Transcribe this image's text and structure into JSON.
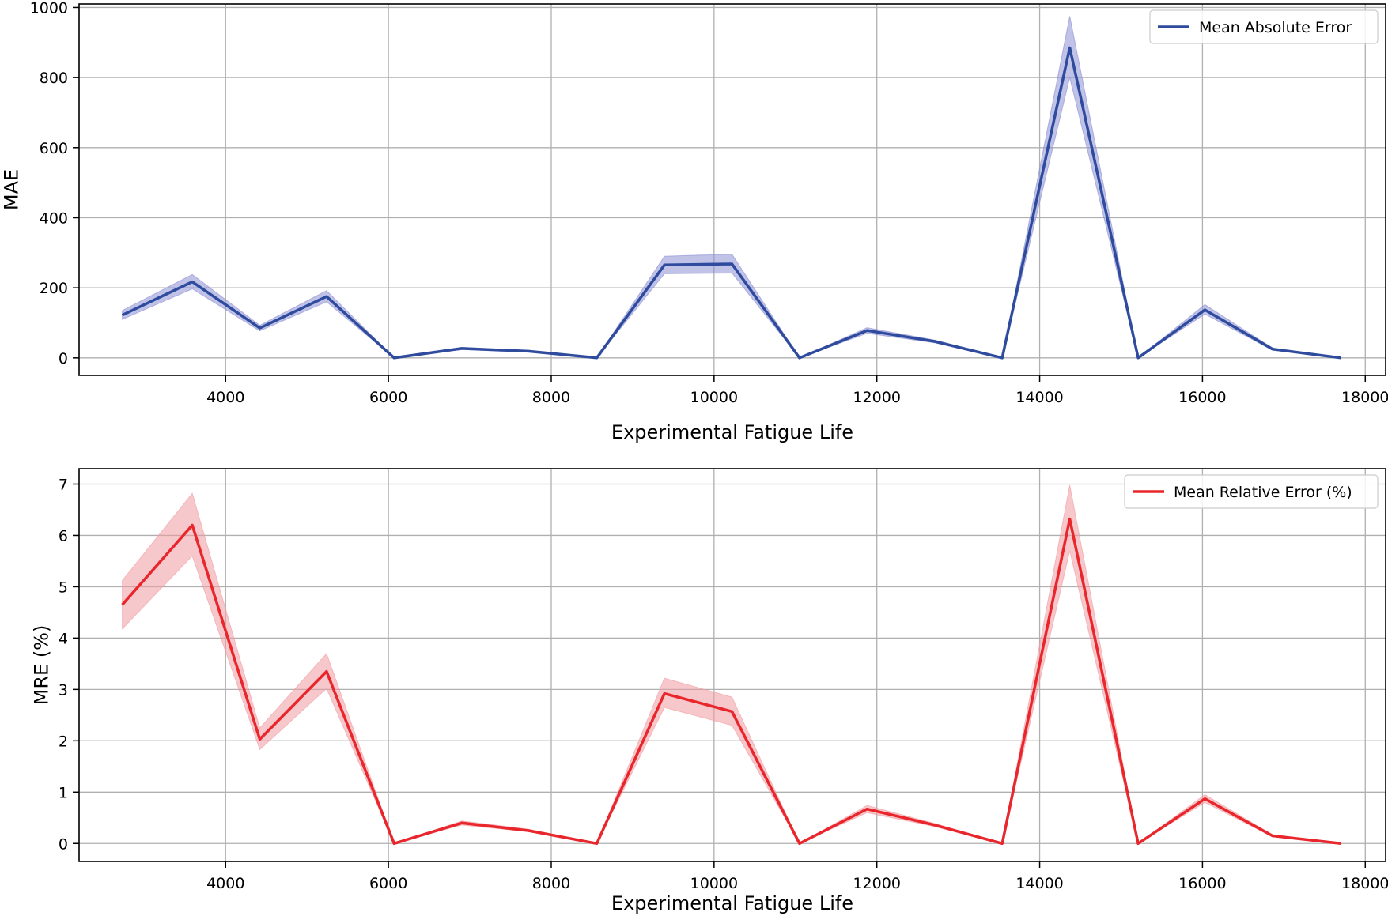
{
  "chart_data": [
    {
      "type": "line",
      "title": "",
      "xlabel": "Experimental Fatigue Life",
      "ylabel": "MAE",
      "xlim": [
        2200,
        18250
      ],
      "ylim": [
        -50,
        1010
      ],
      "xticks": [
        4000,
        6000,
        8000,
        10000,
        12000,
        14000,
        16000,
        18000
      ],
      "xtick_labels": [
        "4000",
        "6000",
        "8000",
        "10000",
        "12000",
        "14000",
        "16000",
        "18000"
      ],
      "yticks": [
        0,
        200,
        400,
        600,
        800,
        1000
      ],
      "ytick_labels": [
        "0",
        "200",
        "400",
        "600",
        "800",
        "1000"
      ],
      "grid": true,
      "legend_position": "top-right",
      "series": [
        {
          "name": "Mean Absolute Error",
          "color": "#2f4b9e",
          "band_color": "#8c8fd4",
          "x": [
            2730,
            3590,
            4420,
            5240,
            6070,
            6900,
            7720,
            8560,
            9390,
            10220,
            11050,
            11880,
            12710,
            13540,
            14370,
            15210,
            16030,
            16860,
            17700
          ],
          "values": [
            122,
            217,
            85,
            175,
            0,
            27,
            19,
            0,
            265,
            268,
            0,
            78,
            47,
            0,
            885,
            0,
            137,
            25,
            0
          ],
          "band_low": [
            110,
            197,
            77,
            160,
            0,
            24,
            17,
            0,
            240,
            242,
            0,
            70,
            43,
            0,
            800,
            0,
            125,
            22,
            0
          ],
          "band_high": [
            135,
            238,
            93,
            192,
            0,
            30,
            21,
            0,
            290,
            296,
            0,
            86,
            51,
            0,
            975,
            0,
            152,
            28,
            0
          ]
        }
      ]
    },
    {
      "type": "line",
      "title": "",
      "xlabel": "Experimental Fatigue Life",
      "ylabel": "MRE (%)",
      "xlim": [
        2200,
        18250
      ],
      "ylim": [
        -0.35,
        7.3
      ],
      "xticks": [
        4000,
        6000,
        8000,
        10000,
        12000,
        14000,
        16000,
        18000
      ],
      "xtick_labels": [
        "4000",
        "6000",
        "8000",
        "10000",
        "12000",
        "14000",
        "16000",
        "18000"
      ],
      "yticks": [
        0,
        1,
        2,
        3,
        4,
        5,
        6,
        7
      ],
      "ytick_labels": [
        "0",
        "1",
        "2",
        "3",
        "4",
        "5",
        "6",
        "7"
      ],
      "grid": true,
      "legend_position": "top-right",
      "series": [
        {
          "name": "Mean Relative Error (%)",
          "color": "#e8262c",
          "band_color": "#f19aa0",
          "x": [
            2730,
            3590,
            4420,
            5240,
            6070,
            6900,
            7720,
            8560,
            9390,
            10220,
            11050,
            11880,
            12710,
            13540,
            14370,
            15210,
            16030,
            16860,
            17700
          ],
          "values": [
            4.65,
            6.2,
            2.03,
            3.35,
            0,
            0.4,
            0.25,
            0,
            2.92,
            2.57,
            0,
            0.67,
            0.36,
            0,
            6.32,
            0,
            0.87,
            0.15,
            0
          ],
          "band_low": [
            4.18,
            5.6,
            1.83,
            3.02,
            0,
            0.36,
            0.23,
            0,
            2.65,
            2.3,
            0,
            0.6,
            0.33,
            0,
            5.7,
            0,
            0.8,
            0.13,
            0
          ],
          "band_high": [
            5.12,
            6.82,
            2.25,
            3.7,
            0,
            0.44,
            0.28,
            0,
            3.22,
            2.85,
            0,
            0.74,
            0.39,
            0,
            6.98,
            0,
            0.95,
            0.17,
            0
          ]
        }
      ]
    }
  ]
}
